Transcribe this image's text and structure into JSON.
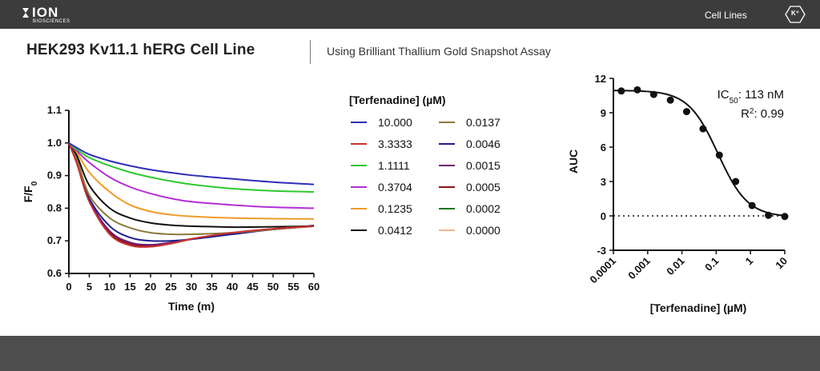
{
  "brand": {
    "name": "ION",
    "subtitle": "BIOSCIENCES"
  },
  "nav": {
    "cell_lines": "Cell Lines",
    "k_badge": "K⁺"
  },
  "header": {
    "title": "HEK293 Kv11.1 hERG Cell Line",
    "subtitle": "Using Brilliant Thallium Gold Snapshot Assay"
  },
  "chart_data": [
    {
      "type": "line",
      "xlabel": "Time (m)",
      "ylabel": "F/F0",
      "ylabel_main": "F/F",
      "ylabel_sub": "0",
      "xlim": [
        0,
        60
      ],
      "ylim": [
        0.6,
        1.1
      ],
      "xticks": [
        "0",
        "5",
        "10",
        "15",
        "20",
        "25",
        "30",
        "35",
        "40",
        "45",
        "50",
        "55",
        "60"
      ],
      "yticks": [
        "0.6",
        "0.7",
        "0.8",
        "0.9",
        "1.0",
        "1.1"
      ],
      "legend_title": "[Terfenadine] (µM)",
      "x": [
        0,
        2,
        5,
        10,
        15,
        20,
        25,
        30,
        40,
        50,
        60
      ],
      "series": [
        {
          "name": "10.000",
          "color": "#2e2eb8",
          "values": [
            1.0,
            0.985,
            0.965,
            0.945,
            0.93,
            0.918,
            0.909,
            0.901,
            0.89,
            0.88,
            0.873
          ]
        },
        {
          "name": "3.3333",
          "color": "#c83232",
          "values": [
            1.0,
            0.935,
            0.82,
            0.72,
            0.686,
            0.682,
            0.692,
            0.706,
            0.725,
            0.737,
            0.745
          ]
        },
        {
          "name": "1.1111",
          "color": "#2ec82e",
          "values": [
            1.0,
            0.98,
            0.955,
            0.93,
            0.91,
            0.895,
            0.883,
            0.873,
            0.86,
            0.853,
            0.85
          ]
        },
        {
          "name": "0.3704",
          "color": "#b42ed7",
          "values": [
            1.0,
            0.975,
            0.94,
            0.895,
            0.865,
            0.845,
            0.83,
            0.82,
            0.81,
            0.803,
            0.8
          ]
        },
        {
          "name": "0.1235",
          "color": "#f09a28",
          "values": [
            1.0,
            0.97,
            0.91,
            0.85,
            0.81,
            0.79,
            0.78,
            0.775,
            0.77,
            0.768,
            0.767
          ]
        },
        {
          "name": "0.0412",
          "color": "#111111",
          "values": [
            1.0,
            0.96,
            0.87,
            0.8,
            0.77,
            0.755,
            0.748,
            0.745,
            0.742,
            0.743,
            0.745
          ]
        },
        {
          "name": "0.0137",
          "color": "#8c7a3c",
          "values": [
            1.0,
            0.95,
            0.84,
            0.77,
            0.74,
            0.725,
            0.72,
            0.72,
            0.725,
            0.735,
            0.745
          ]
        },
        {
          "name": "0.0046",
          "color": "#1e1e8c",
          "values": [
            1.0,
            0.945,
            0.83,
            0.745,
            0.71,
            0.7,
            0.7,
            0.705,
            0.72,
            0.735,
            0.747
          ]
        },
        {
          "name": "0.0015",
          "color": "#6e1e6e",
          "values": [
            1.0,
            0.94,
            0.825,
            0.73,
            0.695,
            0.688,
            0.695,
            0.705,
            0.722,
            0.735,
            0.746
          ]
        },
        {
          "name": "0.0005",
          "color": "#8c1414",
          "values": [
            1.0,
            0.938,
            0.823,
            0.725,
            0.69,
            0.685,
            0.692,
            0.705,
            0.722,
            0.735,
            0.745
          ]
        },
        {
          "name": "0.0002",
          "color": "#1e781e",
          "values": [
            1.0,
            0.937,
            0.822,
            0.724,
            0.688,
            0.684,
            0.692,
            0.705,
            0.722,
            0.735,
            0.745
          ]
        },
        {
          "name": "0.0000",
          "color": "#f0b48c",
          "values": [
            1.0,
            0.936,
            0.821,
            0.723,
            0.687,
            0.683,
            0.691,
            0.705,
            0.723,
            0.736,
            0.746
          ]
        }
      ]
    },
    {
      "type": "scatter",
      "xlabel": "[Terfenadine] (µM)",
      "ylabel": "AUC",
      "xscale": "log",
      "xlim": [
        0.0001,
        10
      ],
      "ylim": [
        -3,
        12
      ],
      "xticks": [
        "0.0001",
        "0.001",
        "0.01",
        "0.1",
        "1",
        "10"
      ],
      "yticks": [
        "-3",
        "0",
        "3",
        "6",
        "9",
        "12"
      ],
      "points": [
        {
          "x": 0.00017,
          "y": 10.9
        },
        {
          "x": 0.0005,
          "y": 11.0
        },
        {
          "x": 0.0015,
          "y": 10.6
        },
        {
          "x": 0.0046,
          "y": 10.1
        },
        {
          "x": 0.0137,
          "y": 9.1
        },
        {
          "x": 0.0412,
          "y": 7.6
        },
        {
          "x": 0.1235,
          "y": 5.3
        },
        {
          "x": 0.3704,
          "y": 3.0
        },
        {
          "x": 1.1111,
          "y": 0.9
        },
        {
          "x": 3.3333,
          "y": 0.05
        },
        {
          "x": 10.0,
          "y": -0.05
        }
      ],
      "fit": {
        "top": 10.95,
        "bottom": -0.1,
        "ic50": 0.113,
        "hill": 1.0
      },
      "annotation": {
        "ic50_prefix": "IC",
        "ic50_sub": "50",
        "ic50_value": ": 113 nM",
        "r2_prefix": "R",
        "r2_sup": "2",
        "r2_value": ": 0.99"
      }
    }
  ]
}
